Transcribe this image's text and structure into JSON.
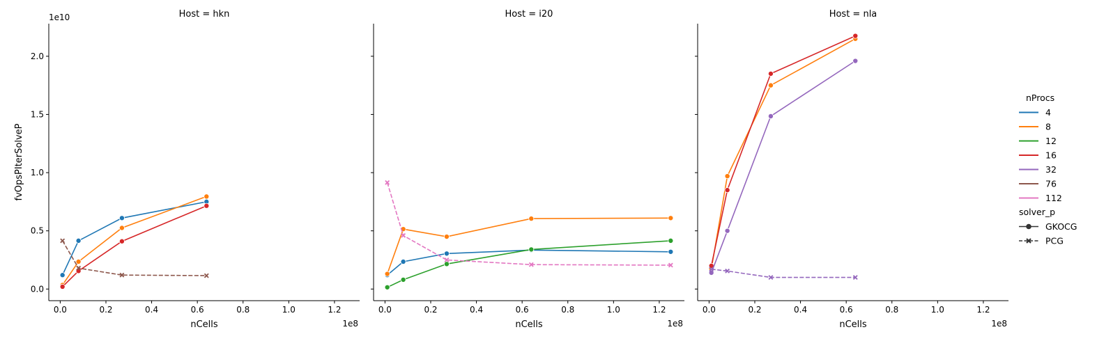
{
  "chart_data": {
    "type": "line",
    "facet_label": "Host",
    "xlabel": "nCells",
    "ylabel": "fvOpsPIterSolveP",
    "x_offset_text": "1e8",
    "y_offset_text": "1e10",
    "xlim": [
      -0.05,
      1.31
    ],
    "ylim": [
      -0.1,
      2.28
    ],
    "x_ticks": [
      0.0,
      0.2,
      0.4,
      0.6,
      0.8,
      1.0,
      1.2
    ],
    "x_tick_labels": [
      "0.0",
      "0.2",
      "0.4",
      "0.6",
      "0.8",
      "1.0",
      "1.2"
    ],
    "y_ticks": [
      0.0,
      0.5,
      1.0,
      1.5,
      2.0
    ],
    "y_tick_labels": [
      "0.0",
      "0.5",
      "1.0",
      "1.5",
      "2.0"
    ],
    "legend": {
      "hue_title": "nProcs",
      "hue_items": [
        {
          "label": "4",
          "color": "#1f77b4"
        },
        {
          "label": "8",
          "color": "#ff7f0e"
        },
        {
          "label": "12",
          "color": "#2ca02c"
        },
        {
          "label": "16",
          "color": "#d62728"
        },
        {
          "label": "32",
          "color": "#9467bd"
        },
        {
          "label": "76",
          "color": "#8c564b"
        },
        {
          "label": "112",
          "color": "#e377c2"
        }
      ],
      "style_title": "solver_p",
      "style_items": [
        {
          "label": "GKOCG",
          "marker": "circle",
          "dash": "solid"
        },
        {
          "label": "PCG",
          "marker": "x",
          "dash": "dashed"
        }
      ],
      "placement": "right"
    },
    "panels": [
      {
        "title": "Host = hkn",
        "series": [
          {
            "nProcs": "4",
            "solver": "GKOCG",
            "x": [
              0.01,
              0.08,
              0.27,
              0.64
            ],
            "y": [
              0.12,
              0.415,
              0.61,
              0.75
            ]
          },
          {
            "nProcs": "8",
            "solver": "GKOCG",
            "x": [
              0.01,
              0.08,
              0.27,
              0.64
            ],
            "y": [
              0.035,
              0.235,
              0.525,
              0.795
            ]
          },
          {
            "nProcs": "16",
            "solver": "GKOCG",
            "x": [
              0.01,
              0.08,
              0.27,
              0.64
            ],
            "y": [
              0.02,
              0.155,
              0.41,
              0.715
            ]
          },
          {
            "nProcs": "76",
            "solver": "PCG",
            "x": [
              0.01,
              0.08,
              0.27,
              0.64
            ],
            "y": [
              0.415,
              0.18,
              0.12,
              0.115
            ]
          }
        ]
      },
      {
        "title": "Host = i20",
        "series": [
          {
            "nProcs": "4",
            "solver": "GKOCG",
            "x": [
              0.01,
              0.08,
              0.27,
              0.64,
              1.25
            ],
            "y": [
              0.12,
              0.235,
              0.305,
              0.335,
              0.32
            ]
          },
          {
            "nProcs": "8",
            "solver": "GKOCG",
            "x": [
              0.01,
              0.08,
              0.27,
              0.64,
              1.25
            ],
            "y": [
              0.13,
              0.515,
              0.45,
              0.605,
              0.61
            ]
          },
          {
            "nProcs": "12",
            "solver": "GKOCG",
            "x": [
              0.01,
              0.08,
              0.27,
              0.64,
              1.25
            ],
            "y": [
              0.015,
              0.08,
              0.215,
              0.34,
              0.415
            ]
          },
          {
            "nProcs": "112",
            "solver": "PCG",
            "x": [
              0.01,
              0.08,
              0.27,
              0.64,
              1.25
            ],
            "y": [
              0.915,
              0.46,
              0.25,
              0.21,
              0.205
            ]
          }
        ]
      },
      {
        "title": "Host = nla",
        "series": [
          {
            "nProcs": "8",
            "solver": "GKOCG",
            "x": [
              0.01,
              0.08,
              0.27,
              0.64
            ],
            "y": [
              0.175,
              0.97,
              1.75,
              2.15
            ]
          },
          {
            "nProcs": "16",
            "solver": "GKOCG",
            "x": [
              0.01,
              0.08,
              0.27,
              0.64
            ],
            "y": [
              0.2,
              0.85,
              1.85,
              2.175
            ]
          },
          {
            "nProcs": "32",
            "solver": "GKOCG",
            "x": [
              0.01,
              0.08,
              0.27,
              0.64
            ],
            "y": [
              0.14,
              0.5,
              1.485,
              1.96
            ]
          },
          {
            "nProcs": "32",
            "solver": "PCG",
            "x": [
              0.01,
              0.08,
              0.27,
              0.64
            ],
            "y": [
              0.17,
              0.155,
              0.1,
              0.1
            ]
          }
        ]
      }
    ]
  }
}
